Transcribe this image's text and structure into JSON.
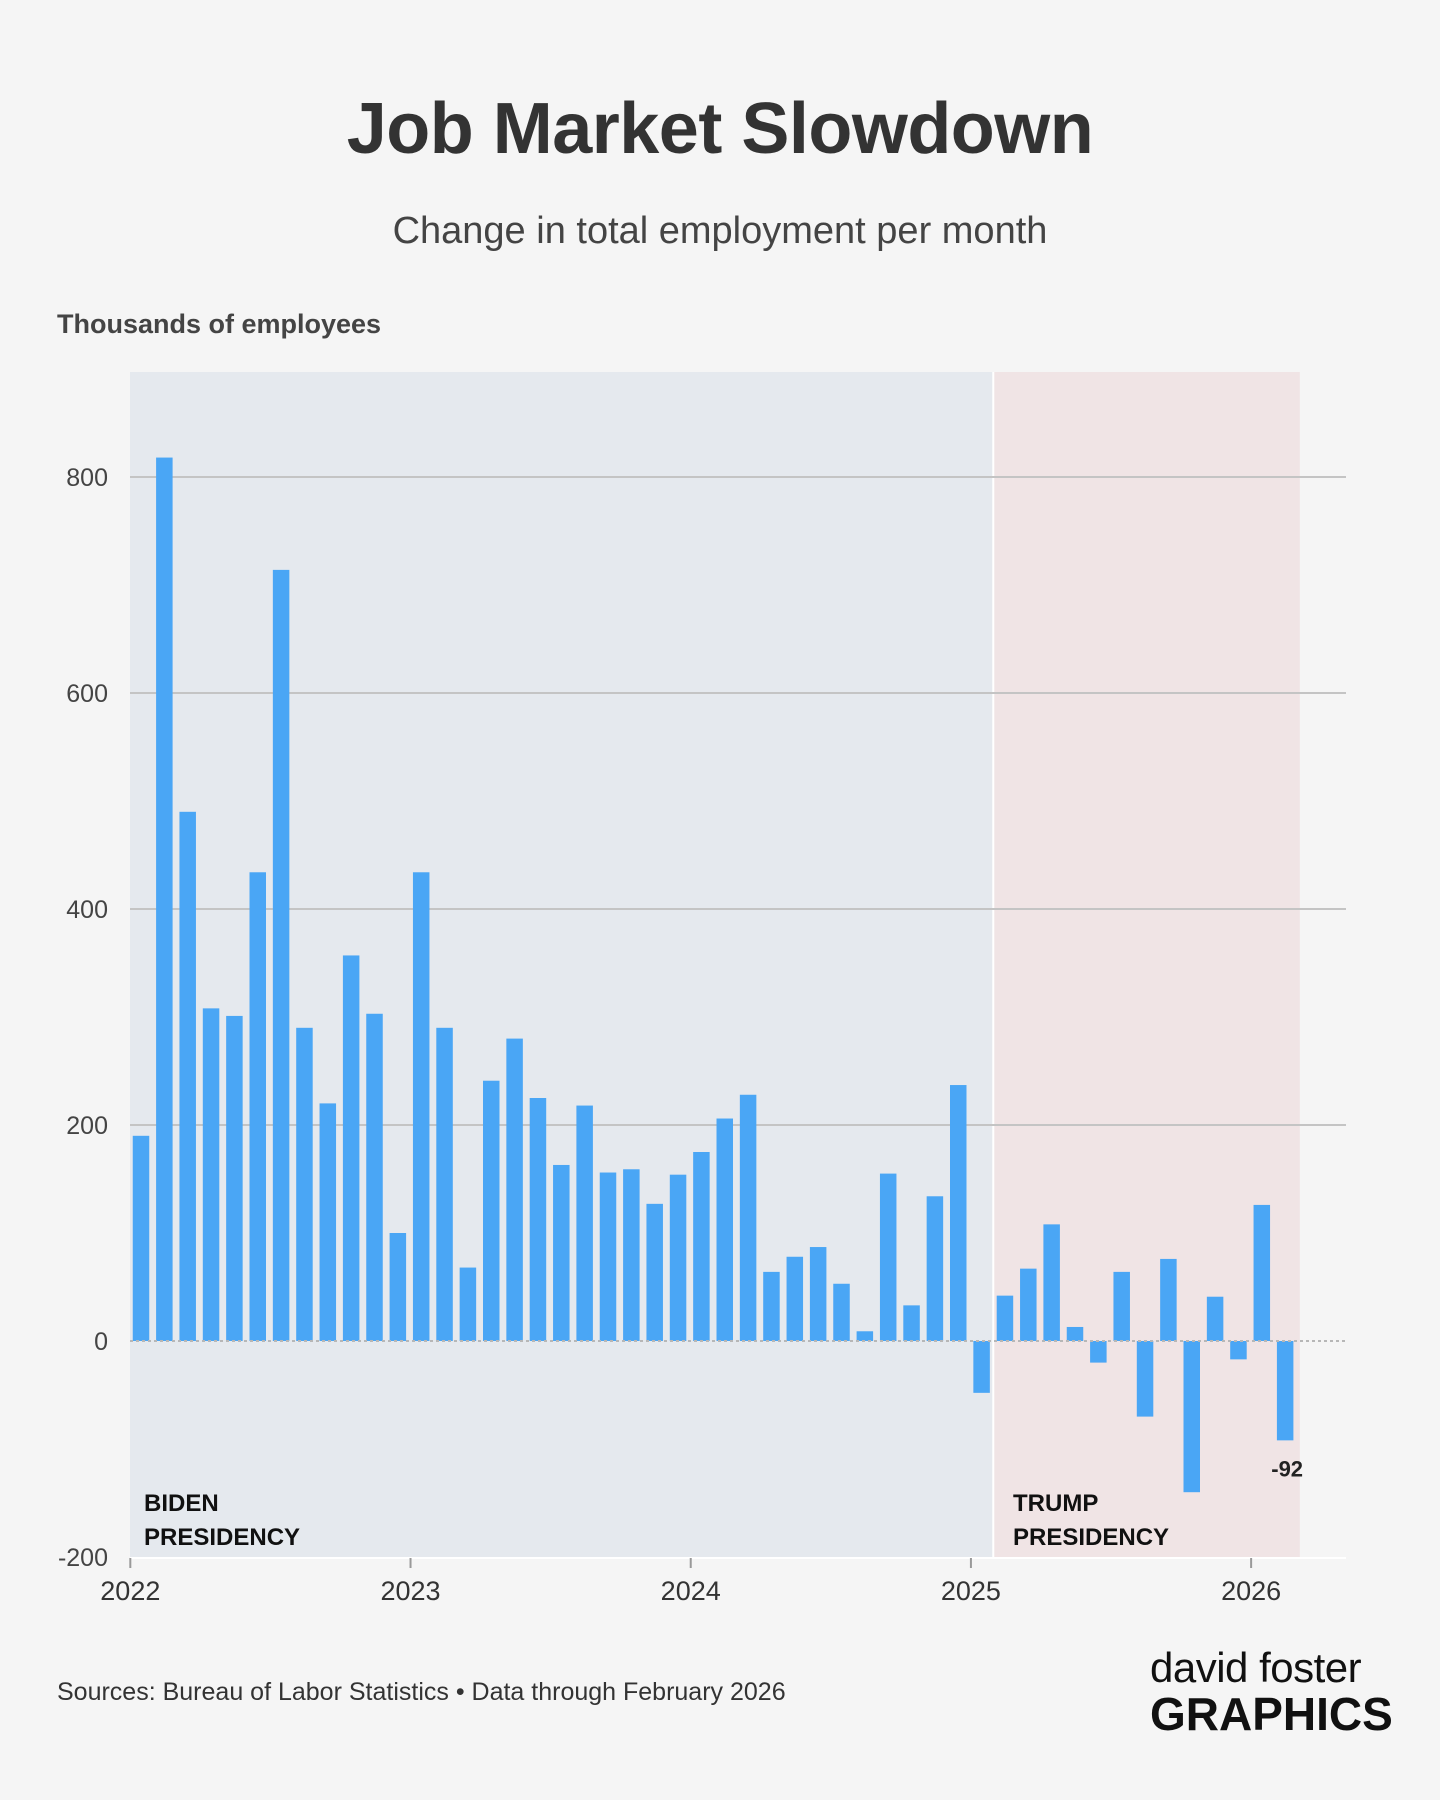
{
  "title": "Job Market Slowdown",
  "subtitle": "Change in total employment per month",
  "footer": "Sources: Bureau of Labor Statistics • Data through February 2026",
  "logo": {
    "line1": "david foster",
    "line2": "GRAPHICS"
  },
  "colors": {
    "bar": "#4aa6f5",
    "biden_bg": "#e5e9ee",
    "trump_bg": "#f0e4e5",
    "grid": "#c4c4c4",
    "zero": "#b7b7b7"
  },
  "chart_data": {
    "type": "bar",
    "title": "Job Market Slowdown",
    "subtitle": "Change in total employment per month",
    "ylabel": "Thousands of employees",
    "ylim": [
      -200,
      900
    ],
    "yticks": [
      -200,
      0,
      200,
      400,
      600,
      800
    ],
    "xticks": [
      "2022",
      "2023",
      "2024",
      "2025",
      "2026"
    ],
    "grid": true,
    "start": "2022-01",
    "values": [
      190,
      818,
      490,
      308,
      301,
      434,
      714,
      290,
      220,
      357,
      303,
      100,
      434,
      290,
      68,
      241,
      280,
      225,
      163,
      218,
      156,
      159,
      127,
      154,
      175,
      206,
      228,
      64,
      78,
      87,
      53,
      9,
      155,
      33,
      134,
      237,
      -48,
      42,
      67,
      108,
      13,
      -20,
      64,
      -70,
      76,
      -140,
      41,
      -17,
      126,
      -92
    ],
    "regions": [
      {
        "label_line1": "BIDEN",
        "label_line2": "PRESIDENCY",
        "from": "2022-01",
        "to": "2025-01"
      },
      {
        "label_line1": "TRUMP",
        "label_line2": "PRESIDENCY",
        "from": "2025-02",
        "to": "2026-02"
      }
    ],
    "annotation": {
      "month": "2026-02",
      "value": -92,
      "text": "-92"
    }
  }
}
